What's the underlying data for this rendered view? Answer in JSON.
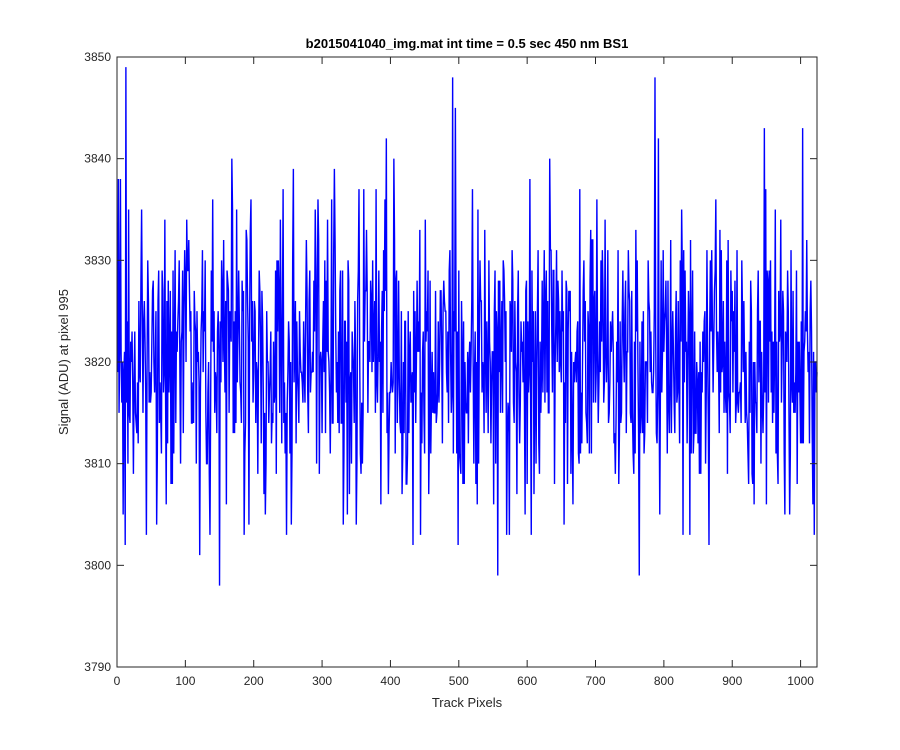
{
  "chart_data": {
    "type": "line",
    "title": "b2015041040_img.mat int time = 0.5 sec  450 nm BS1",
    "xlabel": "Track Pixels",
    "ylabel": "Signal (ADU) at pixel 995",
    "xlim": [
      0,
      1024
    ],
    "ylim": [
      3790,
      3850
    ],
    "xticks": [
      0,
      100,
      200,
      300,
      400,
      500,
      600,
      700,
      800,
      900,
      1000
    ],
    "yticks": [
      3790,
      3800,
      3810,
      3820,
      3830,
      3840,
      3850
    ],
    "grid": false,
    "line_color": "#0000ff",
    "series": [
      {
        "x_start": 1,
        "x_step": 1,
        "noise_mean": 3820,
        "noise_sd": 7,
        "seed": 995,
        "anchor_points": [
          [
            2,
            3838
          ],
          [
            5,
            3838
          ],
          [
            9,
            3805
          ],
          [
            12,
            3802
          ],
          [
            13,
            3849
          ],
          [
            17,
            3835
          ],
          [
            24,
            3809
          ],
          [
            35,
            3828
          ],
          [
            43,
            3803
          ],
          [
            52,
            3827
          ],
          [
            58,
            3804
          ],
          [
            79,
            3808
          ],
          [
            99,
            3831
          ],
          [
            121,
            3801
          ],
          [
            125,
            3831
          ],
          [
            140,
            3836
          ],
          [
            150,
            3798
          ],
          [
            168,
            3840
          ],
          [
            175,
            3835
          ],
          [
            195,
            3833
          ],
          [
            255,
            3804
          ],
          [
            258,
            3839
          ],
          [
            290,
            3835
          ],
          [
            318,
            3839
          ],
          [
            350,
            3804
          ],
          [
            394,
            3842
          ],
          [
            405,
            3840
          ],
          [
            433,
            3802
          ],
          [
            491,
            3848
          ],
          [
            495,
            3845
          ],
          [
            499,
            3802
          ],
          [
            557,
            3799
          ],
          [
            604,
            3838
          ],
          [
            633,
            3840
          ],
          [
            764,
            3799
          ],
          [
            787,
            3848
          ],
          [
            792,
            3842
          ],
          [
            866,
            3802
          ],
          [
            947,
            3843
          ],
          [
            967,
            3808
          ],
          [
            1003,
            3843
          ],
          [
            1020,
            3803
          ]
        ]
      }
    ]
  }
}
